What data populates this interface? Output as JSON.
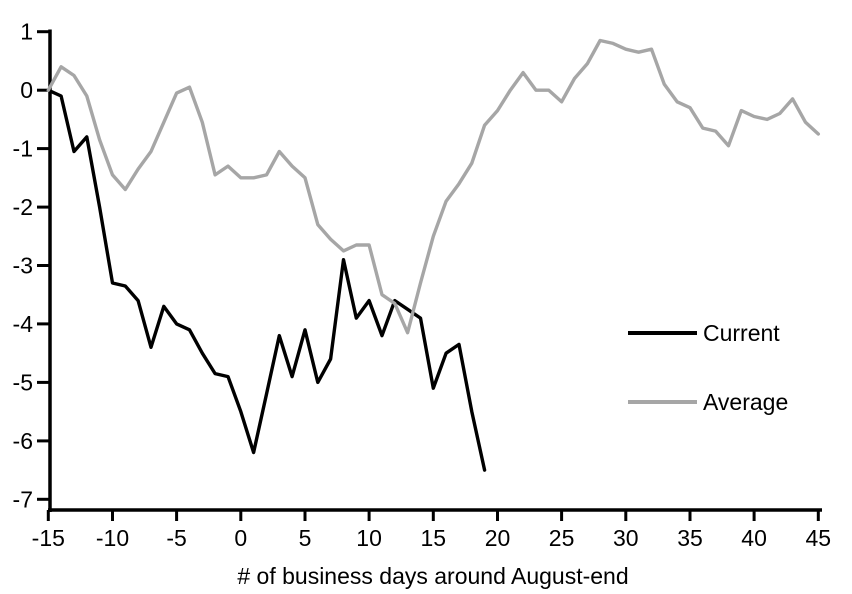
{
  "chart_data": {
    "type": "line",
    "title": "",
    "xlabel": "# of business days around August-end",
    "ylabel": "",
    "xlim": [
      -15,
      45
    ],
    "ylim": [
      -7,
      1
    ],
    "x_ticks": [
      -15,
      -10,
      -5,
      0,
      5,
      10,
      15,
      20,
      25,
      30,
      35,
      40,
      45
    ],
    "y_ticks": [
      1,
      0,
      -1,
      -2,
      -3,
      -4,
      -5,
      -6,
      -7
    ],
    "grid": false,
    "legend_position": "middle-right",
    "axis_color": "#000000",
    "series": [
      {
        "name": "Current",
        "color": "#000000",
        "x": [
          -15,
          -14,
          -13,
          -12,
          -11,
          -10,
          -9,
          -8,
          -7,
          -6,
          -5,
          -4,
          -3,
          -2,
          -1,
          0,
          1,
          2,
          3,
          4,
          5,
          6,
          7,
          8,
          9,
          10,
          11,
          12,
          13,
          14,
          15,
          16,
          17,
          18,
          19
        ],
        "values": [
          0,
          -0.1,
          -1.05,
          -0.8,
          -2.0,
          -3.3,
          -3.35,
          -3.6,
          -4.4,
          -3.7,
          -4.0,
          -4.1,
          -4.5,
          -4.85,
          -4.9,
          -5.5,
          -6.2,
          -5.2,
          -4.2,
          -4.9,
          -4.1,
          -5.0,
          -4.6,
          -2.9,
          -3.9,
          -3.6,
          -4.2,
          -3.6,
          -3.75,
          -3.9,
          -5.1,
          -4.5,
          -4.35,
          -5.5,
          -6.5
        ]
      },
      {
        "name": "Average",
        "color": "#a6a6a6",
        "x": [
          -15,
          -14,
          -13,
          -12,
          -11,
          -10,
          -9,
          -8,
          -7,
          -6,
          -5,
          -4,
          -3,
          -2,
          -1,
          0,
          1,
          2,
          3,
          4,
          5,
          6,
          7,
          8,
          9,
          10,
          11,
          12,
          13,
          14,
          15,
          16,
          17,
          18,
          19,
          20,
          21,
          22,
          23,
          24,
          25,
          26,
          27,
          28,
          29,
          30,
          31,
          32,
          33,
          34,
          35,
          36,
          37,
          38,
          39,
          40,
          41,
          42,
          43,
          44,
          45
        ],
        "values": [
          0,
          0.4,
          0.25,
          -0.1,
          -0.85,
          -1.45,
          -1.7,
          -1.35,
          -1.05,
          -0.55,
          -0.05,
          0.05,
          -0.55,
          -1.45,
          -1.3,
          -1.5,
          -1.5,
          -1.45,
          -1.05,
          -1.3,
          -1.5,
          -2.3,
          -2.55,
          -2.75,
          -2.65,
          -2.65,
          -3.5,
          -3.65,
          -4.15,
          -3.3,
          -2.5,
          -1.9,
          -1.6,
          -1.25,
          -0.6,
          -0.35,
          0.0,
          0.3,
          0.0,
          0.0,
          -0.2,
          0.2,
          0.45,
          0.85,
          0.8,
          0.7,
          0.65,
          0.7,
          0.1,
          -0.2,
          -0.3,
          -0.65,
          -0.7,
          -0.95,
          -0.35,
          -0.45,
          -0.5,
          -0.4,
          -0.15,
          -0.55,
          -0.75
        ]
      }
    ]
  }
}
